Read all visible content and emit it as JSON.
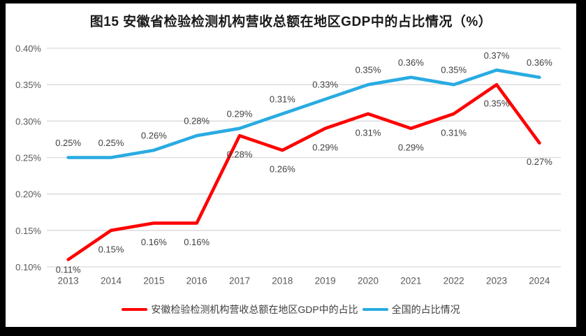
{
  "figure": {
    "title": "图15 安徽省检验检测机构营收总额在地区GDP中的占比情况（%）"
  },
  "chart_data": {
    "type": "line",
    "title": "图15 安徽省检验检测机构营收总额在地区GDP中的占比情况（%）",
    "categories": [
      "2013",
      "2014",
      "2015",
      "2016",
      "2017",
      "2018",
      "2019",
      "2020",
      "2021",
      "2022",
      "2023",
      "2024"
    ],
    "series": [
      {
        "name": "安徽检验检测机构营收总额在地区GDP中的占比",
        "color": "#FF0000",
        "values": [
          0.11,
          0.15,
          0.16,
          0.16,
          0.28,
          0.26,
          0.29,
          0.31,
          0.29,
          0.31,
          0.35,
          0.27
        ],
        "labels": [
          "0.11%",
          "0.15%",
          "0.16%",
          "0.16%",
          "0.28%",
          "0.26%",
          "0.29%",
          "0.31%",
          "0.29%",
          "0.31%",
          "0.35%",
          "0.27%"
        ],
        "label_position": "below"
      },
      {
        "name": "全国的占比情况",
        "color": "#29ABE2",
        "values": [
          0.25,
          0.25,
          0.26,
          0.28,
          0.29,
          0.31,
          0.33,
          0.35,
          0.36,
          0.35,
          0.37,
          0.36
        ],
        "labels": [
          "0.25%",
          "0.25%",
          "0.26%",
          "0.28%",
          "0.29%",
          "0.31%",
          "0.33%",
          "0.35%",
          "0.36%",
          "0.35%",
          "0.37%",
          "0.36%"
        ],
        "label_position": "above"
      }
    ],
    "ylim": [
      0.1,
      0.4
    ],
    "ytick_step": 0.05,
    "ytick_labels": [
      "0.10%",
      "0.15%",
      "0.20%",
      "0.25%",
      "0.30%",
      "0.35%",
      "0.40%"
    ],
    "unit": "%",
    "grid": "horizontal",
    "gridline_color": "#D9D9D9",
    "axis_label_color": "#595959",
    "data_label_color": "#404040",
    "legend_position": "bottom"
  }
}
